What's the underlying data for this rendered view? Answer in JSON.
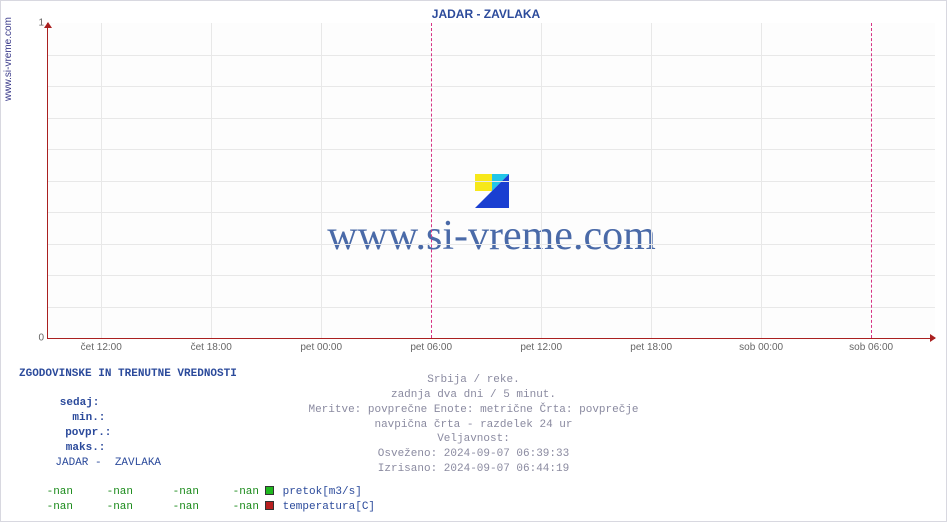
{
  "side_label": "www.si-vreme.com",
  "chart": {
    "type": "line",
    "title": "JADAR -  ZAVLAKA",
    "title_color": "#2b4a9b",
    "title_fontsize": 12,
    "background_color": "#fdfdfd",
    "axis_color": "#aa2020",
    "grid_color": "#e8e8e8",
    "major_vline_color": "#d63384",
    "ylim": [
      0,
      1
    ],
    "yticks": [
      0,
      1
    ],
    "xticks": [
      {
        "pos_pct": 6.0,
        "label": "čet 12:00"
      },
      {
        "pos_pct": 18.4,
        "label": "čet 18:00"
      },
      {
        "pos_pct": 30.8,
        "label": "pet 00:00"
      },
      {
        "pos_pct": 43.2,
        "label": "pet 06:00",
        "major": true
      },
      {
        "pos_pct": 55.6,
        "label": "pet 12:00"
      },
      {
        "pos_pct": 68.0,
        "label": "pet 18:00"
      },
      {
        "pos_pct": 80.4,
        "label": "sob 00:00"
      },
      {
        "pos_pct": 92.8,
        "label": "sob 06:00",
        "major": true
      }
    ],
    "grid_h_positions_pct": [
      10,
      20,
      30,
      40,
      50,
      60,
      70,
      80,
      90
    ],
    "label_fontsize": 10,
    "label_color": "#666666",
    "series": []
  },
  "watermark": {
    "text": "www.si-vreme.com",
    "text_color": "#4a6aa8",
    "fontsize": 42,
    "icon_colors": {
      "yellow": "#f7e81a",
      "cyan": "#22c6e8",
      "blue": "#1a3fd1"
    }
  },
  "info": {
    "lines": [
      "Srbija / reke.",
      "zadnja dva dni / 5 minut.",
      "Meritve: povprečne  Enote: metrične  Črta: povprečje",
      "navpična črta - razdelek 24 ur",
      "Veljavnost:",
      "Osveženo: 2024-09-07 06:39:33",
      "Izrisano: 2024-09-07 06:44:19"
    ],
    "color": "#8a8aa0"
  },
  "table": {
    "title": "ZGODOVINSKE IN TRENUTNE VREDNOSTI",
    "headers": [
      "sedaj:",
      "min.:",
      "povpr.:",
      "maks.:"
    ],
    "station": "JADAR -  ZAVLAKA",
    "rows": [
      {
        "values": [
          "-nan",
          "-nan",
          "-nan",
          "-nan"
        ],
        "swatch": "#1fb81f",
        "series": "pretok[m3/s]"
      },
      {
        "values": [
          "-nan",
          "-nan",
          "-nan",
          "-nan"
        ],
        "swatch": "#b81f1f",
        "series": "temperatura[C]"
      }
    ],
    "header_color": "#2b4a9b",
    "value_color": "#1a8a1a"
  }
}
